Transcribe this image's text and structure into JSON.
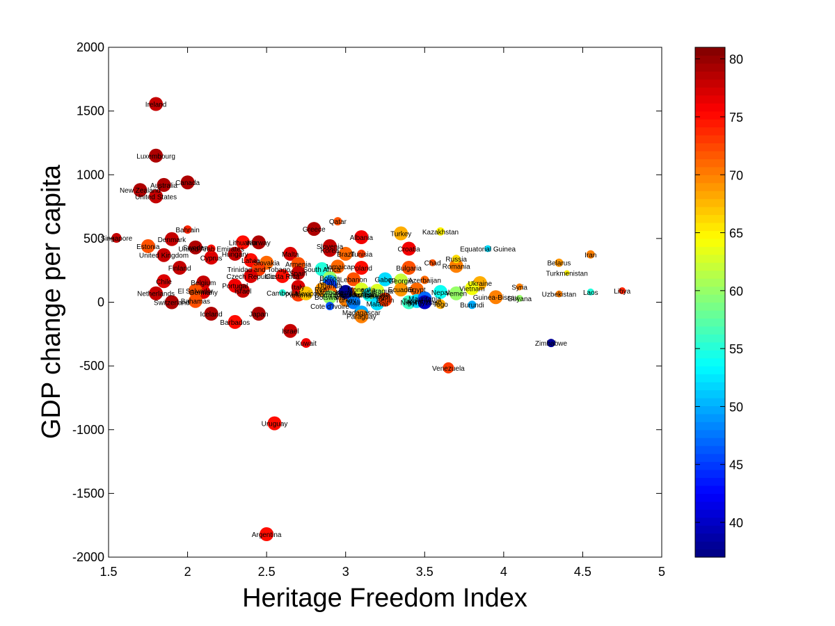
{
  "chart_data": {
    "type": "scatter",
    "xlabel": "Heritage Freedom Index",
    "ylabel": "GDP change per capita",
    "xlim": [
      1.5,
      5
    ],
    "ylim": [
      -2000,
      2000
    ],
    "xticks": [
      1.5,
      2,
      2.5,
      3,
      3.5,
      4,
      4.5,
      5
    ],
    "yticks": [
      -2000,
      -1500,
      -1000,
      -500,
      0,
      500,
      1000,
      1500,
      2000
    ],
    "grid": false,
    "colorbar": {
      "colormap": "jet",
      "range": [
        37,
        81
      ],
      "ticks": [
        40,
        45,
        50,
        55,
        60,
        65,
        70,
        75,
        80
      ],
      "placement": "right"
    },
    "points": [
      {
        "label": "Ireland",
        "x": 1.8,
        "y": 1555,
        "c": 78,
        "s": 10
      },
      {
        "label": "Luxembourg",
        "x": 1.8,
        "y": 1150,
        "c": 79,
        "s": 10
      },
      {
        "label": "New Zealand",
        "x": 1.7,
        "y": 880,
        "c": 79,
        "s": 10
      },
      {
        "label": "Australia",
        "x": 1.85,
        "y": 920,
        "c": 79,
        "s": 10
      },
      {
        "label": "Canada",
        "x": 2.0,
        "y": 940,
        "c": 79,
        "s": 10
      },
      {
        "label": "United States",
        "x": 1.8,
        "y": 830,
        "c": 78,
        "s": 10
      },
      {
        "label": "Singapore",
        "x": 1.55,
        "y": 505,
        "c": 78,
        "s": 7
      },
      {
        "label": "Bahrain",
        "x": 2.0,
        "y": 570,
        "c": 74,
        "s": 6
      },
      {
        "label": "Denmark",
        "x": 1.9,
        "y": 495,
        "c": 78,
        "s": 10
      },
      {
        "label": "Estonia",
        "x": 1.75,
        "y": 440,
        "c": 72,
        "s": 10
      },
      {
        "label": "United Kingdom",
        "x": 1.85,
        "y": 370,
        "c": 78,
        "s": 10
      },
      {
        "label": "Sweden",
        "x": 2.05,
        "y": 430,
        "c": 79,
        "s": 10
      },
      {
        "label": "United Arab Emirates",
        "x": 2.15,
        "y": 420,
        "c": 75,
        "s": 6
      },
      {
        "label": "Cyprus",
        "x": 2.15,
        "y": 350,
        "c": 77,
        "s": 10
      },
      {
        "label": "Finland",
        "x": 1.95,
        "y": 270,
        "c": 78,
        "s": 10
      },
      {
        "label": "Chile",
        "x": 1.85,
        "y": 165,
        "c": 77,
        "s": 10
      },
      {
        "label": "Netherlands",
        "x": 1.8,
        "y": 70,
        "c": 78,
        "s": 10
      },
      {
        "label": "Switzerland",
        "x": 1.9,
        "y": 0,
        "c": 79,
        "s": 10
      },
      {
        "label": "Belgium",
        "x": 2.1,
        "y": 155,
        "c": 78,
        "s": 10
      },
      {
        "label": "Germany",
        "x": 2.1,
        "y": 80,
        "c": 77,
        "s": 10
      },
      {
        "label": "El Salvador",
        "x": 2.05,
        "y": 90,
        "c": 72,
        "s": 10
      },
      {
        "label": "Bahamas",
        "x": 2.05,
        "y": 10,
        "c": 72,
        "s": 10
      },
      {
        "label": "Portugal",
        "x": 2.3,
        "y": 130,
        "c": 76,
        "s": 10
      },
      {
        "label": "Iceland",
        "x": 2.15,
        "y": -90,
        "c": 79,
        "s": 10
      },
      {
        "label": "Barbados",
        "x": 2.3,
        "y": -155,
        "c": 75,
        "s": 10
      },
      {
        "label": "Japan",
        "x": 2.45,
        "y": -90,
        "c": 79,
        "s": 10
      },
      {
        "label": "Lithuania",
        "x": 2.35,
        "y": 470,
        "c": 75,
        "s": 10
      },
      {
        "label": "Norway",
        "x": 2.45,
        "y": 470,
        "c": 79,
        "s": 10
      },
      {
        "label": "Hungary",
        "x": 2.3,
        "y": 380,
        "c": 78,
        "s": 10
      },
      {
        "label": "Latvia",
        "x": 2.4,
        "y": 330,
        "c": 75,
        "s": 10
      },
      {
        "label": "Slovakia",
        "x": 2.5,
        "y": 310,
        "c": 71,
        "s": 10
      },
      {
        "label": "Trinidad and Tobago",
        "x": 2.45,
        "y": 260,
        "c": 73,
        "s": 10
      },
      {
        "label": "Czech Republic",
        "x": 2.4,
        "y": 205,
        "c": 77,
        "s": 10
      },
      {
        "label": "Costa Rica",
        "x": 2.6,
        "y": 205,
        "c": 75,
        "s": 10
      },
      {
        "label": "Israel",
        "x": 2.35,
        "y": 90,
        "c": 78,
        "s": 10
      },
      {
        "label": "Malta",
        "x": 2.65,
        "y": 380,
        "c": 77,
        "s": 10
      },
      {
        "label": "Armenia",
        "x": 2.7,
        "y": 300,
        "c": 72,
        "s": 10
      },
      {
        "label": "Spain",
        "x": 2.7,
        "y": 230,
        "c": 78,
        "s": 10
      },
      {
        "label": "Cambodia",
        "x": 2.6,
        "y": 75,
        "c": 55,
        "s": 5
      },
      {
        "label": "Panama",
        "x": 2.7,
        "y": 60,
        "c": 73,
        "s": 10
      },
      {
        "label": "Italy",
        "x": 2.7,
        "y": 120,
        "c": 77,
        "s": 10
      },
      {
        "label": "Mexico",
        "x": 2.75,
        "y": 70,
        "c": 67,
        "s": 10
      },
      {
        "label": "Greece",
        "x": 2.8,
        "y": 575,
        "c": 79,
        "s": 10
      },
      {
        "label": "Qatar",
        "x": 2.95,
        "y": 635,
        "c": 72,
        "s": 6
      },
      {
        "label": "Slovenia",
        "x": 2.9,
        "y": 440,
        "c": 78,
        "s": 10
      },
      {
        "label": "Korea",
        "x": 2.9,
        "y": 410,
        "c": 78,
        "s": 10
      },
      {
        "label": "Jamaica",
        "x": 2.95,
        "y": 280,
        "c": 71,
        "s": 10
      },
      {
        "label": "South Africa",
        "x": 2.85,
        "y": 260,
        "c": 55,
        "s": 10
      },
      {
        "label": "Bolivia",
        "x": 2.9,
        "y": 190,
        "c": 60,
        "s": 10
      },
      {
        "label": "Ghana",
        "x": 2.9,
        "y": 160,
        "c": 50,
        "s": 10
      },
      {
        "label": "Uganda",
        "x": 2.9,
        "y": 130,
        "c": 45,
        "s": 10
      },
      {
        "label": "Peru",
        "x": 2.85,
        "y": 100,
        "c": 69,
        "s": 10
      },
      {
        "label": "Morocco",
        "x": 2.9,
        "y": 80,
        "c": 71,
        "s": 10
      },
      {
        "label": "Botswana",
        "x": 2.9,
        "y": 40,
        "c": 60,
        "s": 10
      },
      {
        "label": "Dominican Republic",
        "x": 3.0,
        "y": 60,
        "c": 68,
        "s": 10
      },
      {
        "label": "Saudi Arabia",
        "x": 3.05,
        "y": 60,
        "c": 71,
        "s": 10
      },
      {
        "label": "Turkey",
        "x": 3.0,
        "y": 20,
        "c": 70,
        "s": 10
      },
      {
        "label": "Cote d'Ivoire",
        "x": 2.9,
        "y": -30,
        "c": 46,
        "s": 6
      },
      {
        "label": "Brazil",
        "x": 3.0,
        "y": 380,
        "c": 71,
        "s": 10
      },
      {
        "label": "Albania",
        "x": 3.1,
        "y": 510,
        "c": 76,
        "s": 10
      },
      {
        "label": "Tunisia",
        "x": 3.1,
        "y": 380,
        "c": 73,
        "s": 6
      },
      {
        "label": "Poland",
        "x": 3.1,
        "y": 270,
        "c": 75,
        "s": 10
      },
      {
        "label": "Lebanon",
        "x": 3.05,
        "y": 180,
        "c": 72,
        "s": 10
      },
      {
        "label": "Mongolia",
        "x": 3.1,
        "y": 100,
        "c": 63,
        "s": 10
      },
      {
        "label": "Mali",
        "x": 3.05,
        "y": 0,
        "c": 48,
        "s": 10
      },
      {
        "label": "Kenya",
        "x": 3.0,
        "y": 80,
        "c": 38,
        "s": 10
      },
      {
        "label": "Madagascar",
        "x": 3.1,
        "y": -80,
        "c": 50,
        "s": 10
      },
      {
        "label": "Paraguay",
        "x": 3.1,
        "y": -110,
        "c": 70,
        "s": 10
      },
      {
        "label": "Mozambique",
        "x": 3.15,
        "y": 60,
        "c": 54,
        "s": 10
      },
      {
        "label": "Gabon",
        "x": 3.25,
        "y": 180,
        "c": 52,
        "s": 10
      },
      {
        "label": "Nicaragua",
        "x": 3.2,
        "y": 90,
        "c": 63,
        "s": 10
      },
      {
        "label": "Senegal",
        "x": 3.2,
        "y": 50,
        "c": 60,
        "s": 10
      },
      {
        "label": "Malawi",
        "x": 3.2,
        "y": -10,
        "c": 52,
        "s": 10
      },
      {
        "label": "Benin",
        "x": 3.25,
        "y": 20,
        "c": 73,
        "s": 10
      },
      {
        "label": "Turkey",
        "x": 3.35,
        "y": 540,
        "c": 68,
        "s": 10
      },
      {
        "label": "Kazakhstan",
        "x": 3.6,
        "y": 555,
        "c": 65,
        "s": 6
      },
      {
        "label": "Croatia",
        "x": 3.4,
        "y": 420,
        "c": 76,
        "s": 10
      },
      {
        "label": "Bulgaria",
        "x": 3.4,
        "y": 270,
        "c": 72,
        "s": 10
      },
      {
        "label": "Georgia",
        "x": 3.35,
        "y": 170,
        "c": 62,
        "s": 10
      },
      {
        "label": "Ecuador",
        "x": 3.35,
        "y": 100,
        "c": 69,
        "s": 10
      },
      {
        "label": "Azerbaijan",
        "x": 3.5,
        "y": 175,
        "c": 71,
        "s": 6
      },
      {
        "label": "Egypt",
        "x": 3.45,
        "y": 100,
        "c": 71,
        "s": 10
      },
      {
        "label": "Niger",
        "x": 3.4,
        "y": 0,
        "c": 56,
        "s": 10
      },
      {
        "label": "Tanzania",
        "x": 3.45,
        "y": 10,
        "c": 52,
        "s": 10
      },
      {
        "label": "Mauritania",
        "x": 3.5,
        "y": 30,
        "c": 47,
        "s": 10
      },
      {
        "label": "Kyrgyzstan",
        "x": 3.5,
        "y": 0,
        "c": 40,
        "s": 10
      },
      {
        "label": "Chad",
        "x": 3.55,
        "y": 310,
        "c": 72,
        "s": 5
      },
      {
        "label": "Russia",
        "x": 3.7,
        "y": 340,
        "c": 66,
        "s": 6
      },
      {
        "label": "Romania",
        "x": 3.7,
        "y": 285,
        "c": 70,
        "s": 10
      },
      {
        "label": "Equatorial Guinea",
        "x": 3.9,
        "y": 420,
        "c": 52,
        "s": 5
      },
      {
        "label": "Ukraine",
        "x": 3.85,
        "y": 150,
        "c": 68,
        "s": 10
      },
      {
        "label": "Vietnam",
        "x": 3.8,
        "y": 110,
        "c": 64,
        "s": 10
      },
      {
        "label": "Yemen",
        "x": 3.7,
        "y": 70,
        "c": 60,
        "s": 10
      },
      {
        "label": "Nepal",
        "x": 3.6,
        "y": 80,
        "c": 54,
        "s": 10
      },
      {
        "label": "Togo",
        "x": 3.6,
        "y": -15,
        "c": 68,
        "s": 7
      },
      {
        "label": "Burundi",
        "x": 3.8,
        "y": -20,
        "c": 50,
        "s": 6
      },
      {
        "label": "Guinea-Bissau",
        "x": 3.95,
        "y": 40,
        "c": 70,
        "s": 10
      },
      {
        "label": "Syria",
        "x": 4.1,
        "y": 120,
        "c": 70,
        "s": 5
      },
      {
        "label": "Guyana",
        "x": 4.1,
        "y": 30,
        "c": 60,
        "s": 5
      },
      {
        "label": "Belarus",
        "x": 4.35,
        "y": 310,
        "c": 69,
        "s": 6
      },
      {
        "label": "Turkmenistan",
        "x": 4.4,
        "y": 230,
        "c": 65,
        "s": 4
      },
      {
        "label": "Iran",
        "x": 4.55,
        "y": 375,
        "c": 70,
        "s": 6
      },
      {
        "label": "Uzbekistan",
        "x": 4.35,
        "y": 65,
        "c": 70,
        "s": 5
      },
      {
        "label": "Laos",
        "x": 4.55,
        "y": 80,
        "c": 55,
        "s": 5
      },
      {
        "label": "Libya",
        "x": 4.75,
        "y": 90,
        "c": 74,
        "s": 5
      },
      {
        "label": "Zimbabwe",
        "x": 4.3,
        "y": -320,
        "c": 38,
        "s": 6
      },
      {
        "label": "Israel",
        "x": 2.65,
        "y": -225,
        "c": 78,
        "s": 10
      },
      {
        "label": "Kuwait",
        "x": 2.75,
        "y": -320,
        "c": 76,
        "s": 7
      },
      {
        "label": "Venezuela",
        "x": 3.65,
        "y": -515,
        "c": 73,
        "s": 8
      },
      {
        "label": "Uruguay",
        "x": 2.55,
        "y": -950,
        "c": 75,
        "s": 10
      },
      {
        "label": "Argentina",
        "x": 2.5,
        "y": -1820,
        "c": 75,
        "s": 10
      }
    ]
  }
}
